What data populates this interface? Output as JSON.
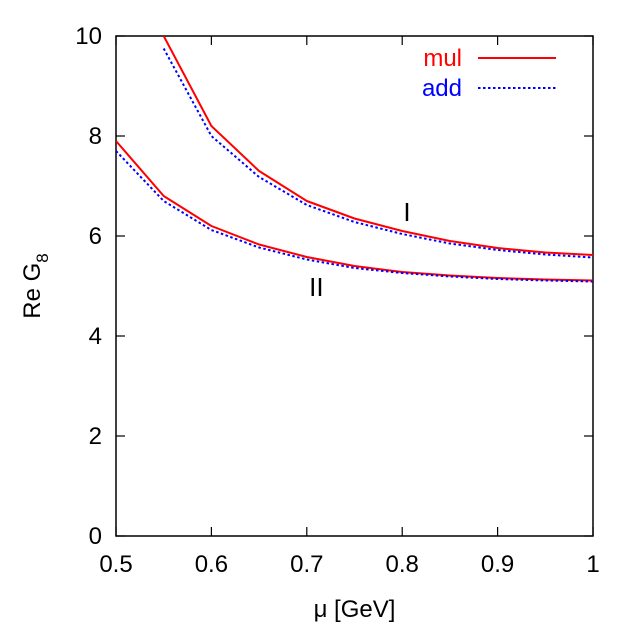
{
  "chart_data": {
    "type": "line",
    "title": "",
    "xlabel": "μ [GeV]",
    "ylabel": "Re G",
    "ylabel_subscript": "8",
    "xlim": [
      0.5,
      1.0
    ],
    "ylim": [
      0,
      10
    ],
    "x_ticks": [
      0.5,
      0.6,
      0.7,
      0.8,
      0.9,
      1.0
    ],
    "x_tick_labels": [
      "0.5",
      "0.6",
      "0.7",
      "0.8",
      "0.9",
      "1"
    ],
    "y_ticks": [
      0,
      2,
      4,
      6,
      8,
      10
    ],
    "y_tick_labels": [
      "0",
      "2",
      "4",
      "6",
      "8",
      "10"
    ],
    "grid": false,
    "legend_position": "top-right",
    "legend": [
      {
        "label": "mul",
        "color": "#ff0000",
        "style": "solid"
      },
      {
        "label": "add",
        "color": "#0000ff",
        "style": "dotted"
      }
    ],
    "annotations": [
      {
        "text": "I",
        "x": 0.805,
        "y": 6.5
      },
      {
        "text": "II",
        "x": 0.71,
        "y": 5.0
      }
    ],
    "series": [
      {
        "curve": "I",
        "legend": "mul",
        "color": "#ff0000",
        "style": "solid",
        "x": [
          0.55,
          0.6,
          0.65,
          0.7,
          0.75,
          0.8,
          0.85,
          0.9,
          0.95,
          1.0
        ],
        "y": [
          10.0,
          8.2,
          7.3,
          6.7,
          6.35,
          6.1,
          5.9,
          5.76,
          5.67,
          5.62
        ]
      },
      {
        "curve": "I",
        "legend": "add",
        "color": "#0000ff",
        "style": "dotted",
        "x": [
          0.55,
          0.6,
          0.65,
          0.7,
          0.75,
          0.8,
          0.85,
          0.9,
          0.95,
          1.0
        ],
        "y": [
          9.75,
          8.0,
          7.18,
          6.62,
          6.28,
          6.04,
          5.85,
          5.72,
          5.63,
          5.57
        ]
      },
      {
        "curve": "II",
        "legend": "mul",
        "color": "#ff0000",
        "style": "solid",
        "x": [
          0.5,
          0.55,
          0.6,
          0.65,
          0.7,
          0.75,
          0.8,
          0.85,
          0.9,
          0.95,
          1.0
        ],
        "y": [
          7.9,
          6.8,
          6.2,
          5.83,
          5.58,
          5.4,
          5.28,
          5.21,
          5.16,
          5.13,
          5.11
        ]
      },
      {
        "curve": "II",
        "legend": "add",
        "color": "#0000ff",
        "style": "dotted",
        "x": [
          0.5,
          0.55,
          0.6,
          0.65,
          0.7,
          0.75,
          0.8,
          0.85,
          0.9,
          0.95,
          1.0
        ],
        "y": [
          7.7,
          6.7,
          6.12,
          5.77,
          5.53,
          5.36,
          5.26,
          5.19,
          5.14,
          5.11,
          5.09
        ]
      }
    ]
  }
}
